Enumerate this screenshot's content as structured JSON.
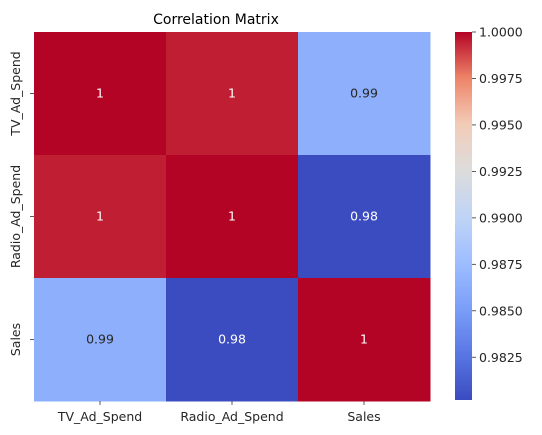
{
  "chart_data": {
    "type": "heatmap",
    "title": "Correlation Matrix",
    "xlabel": "",
    "ylabel": "",
    "rows": [
      "TV_Ad_Spend",
      "Radio_Ad_Spend",
      "Sales"
    ],
    "columns": [
      "TV_Ad_Spend",
      "Radio_Ad_Spend",
      "Sales"
    ],
    "values": [
      [
        1.0,
        0.9995,
        0.9865
      ],
      [
        0.9995,
        1.0,
        0.9802
      ],
      [
        0.9865,
        0.9802,
        1.0
      ]
    ],
    "annotations": [
      [
        "1",
        "1",
        "0.99"
      ],
      [
        "1",
        "1",
        "0.98"
      ],
      [
        "0.99",
        "0.98",
        "1"
      ]
    ],
    "colormap": "coolwarm",
    "colorbar": {
      "min": 0.9802,
      "max": 1.0,
      "ticks": [
        "1.0000",
        "0.9975",
        "0.9950",
        "0.9925",
        "0.9900",
        "0.9875",
        "0.9850",
        "0.9825"
      ]
    }
  }
}
